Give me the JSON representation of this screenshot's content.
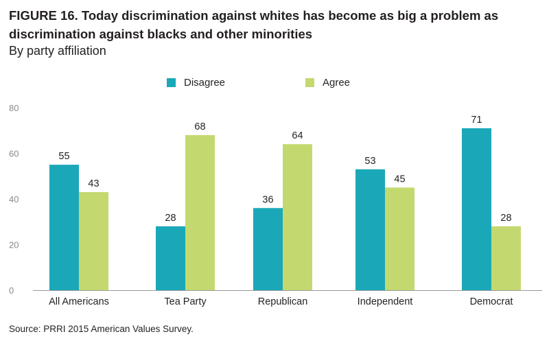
{
  "figure": {
    "title": "FIGURE 16.  Today discrimination against whites has become as big a problem as discrimination against blacks and other minorities",
    "subtitle": "By party affiliation",
    "source": "Source: PRRI 2015 American Values Survey."
  },
  "colors": {
    "disagree": "#1aa8b8",
    "agree": "#c3d96f",
    "axis": "#999999",
    "text": "#231f20",
    "tick_text": "#8a8a8a"
  },
  "chart_data": {
    "type": "bar",
    "title": "FIGURE 16.  Today discrimination against whites has become as big a problem as discrimination against blacks and other minorities",
    "subtitle": "By party affiliation",
    "xlabel": "",
    "ylabel": "",
    "categories": [
      "All Americans",
      "Tea Party",
      "Republican",
      "Independent",
      "Democrat"
    ],
    "series": [
      {
        "name": "Disagree",
        "values": [
          55,
          28,
          36,
          53,
          71
        ]
      },
      {
        "name": "Agree",
        "values": [
          43,
          68,
          64,
          45,
          28
        ]
      }
    ],
    "ylim": [
      0,
      80
    ],
    "yticks": [
      0,
      20,
      40,
      60,
      80
    ],
    "grid": false,
    "legend_position": "top-center",
    "data_labels": true
  }
}
